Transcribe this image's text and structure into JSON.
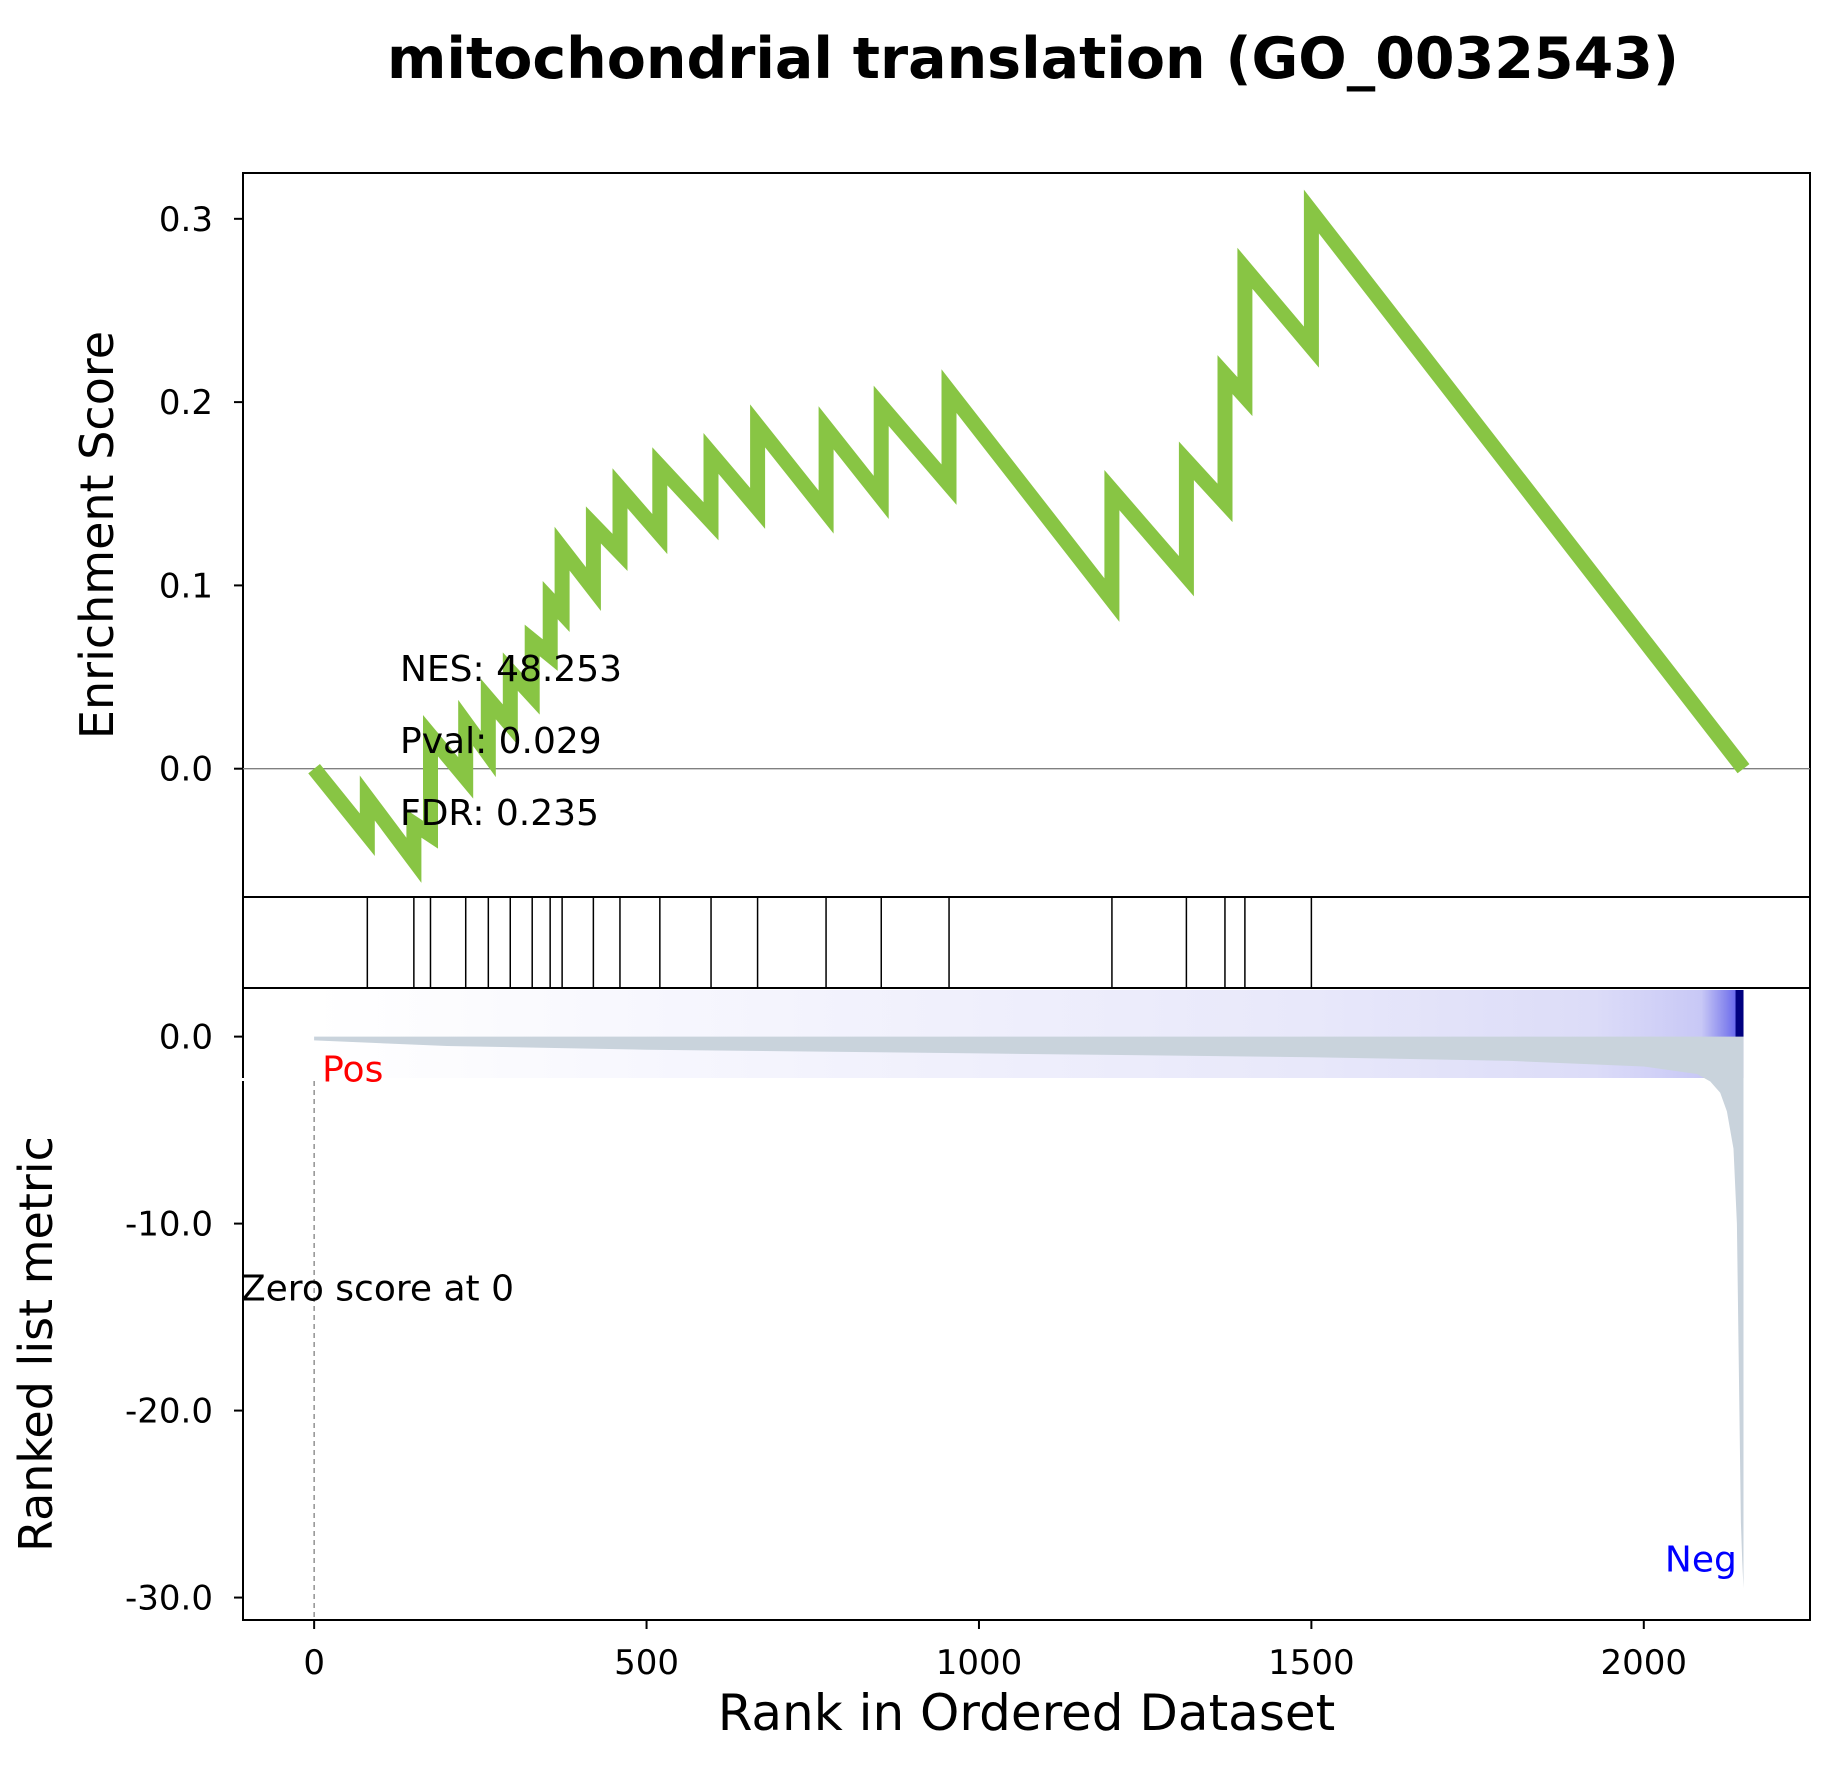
{
  "title": "mitochondrial translation (GO_0032543)",
  "colors": {
    "es_line": "#88c544",
    "metric_fill": "#c9d3dc",
    "pos_label": "#ff0000",
    "neg_label": "#0000ff",
    "heat_dark": "#000080",
    "zero_line": "#808080"
  },
  "chart_data": [
    {
      "type": "line",
      "panel": "enrichment-score",
      "ylabel": "Enrichment Score",
      "ylim": [
        -0.07,
        0.325
      ],
      "yticks": [
        0.0,
        0.1,
        0.2,
        0.3
      ],
      "ytick_labels": [
        "0.0",
        "0.1",
        "0.2",
        "0.3"
      ],
      "xlim": [
        -107,
        2250
      ],
      "stats": [
        "NES: 48.253",
        "Pval: 0.029",
        "FDR: 0.235"
      ],
      "series": [
        {
          "x": [
            0,
            80,
            80,
            150,
            150,
            175,
            175,
            228,
            228,
            262,
            262,
            295,
            295,
            328,
            328,
            355,
            355,
            373,
            373,
            420,
            420,
            460,
            460,
            520,
            520,
            597,
            597,
            667,
            667,
            770,
            770,
            853,
            853,
            955,
            955,
            1200,
            1200,
            1312,
            1312,
            1370,
            1370,
            1400,
            1400,
            1500,
            1500,
            2150
          ],
          "y": [
            0.0,
            -0.036,
            -0.016,
            -0.05,
            -0.03,
            -0.036,
            0.018,
            -0.005,
            0.025,
            0.008,
            0.038,
            0.024,
            0.053,
            0.04,
            0.07,
            0.062,
            0.092,
            0.085,
            0.12,
            0.098,
            0.133,
            0.118,
            0.153,
            0.128,
            0.165,
            0.135,
            0.172,
            0.142,
            0.187,
            0.14,
            0.186,
            0.148,
            0.198,
            0.155,
            0.206,
            0.092,
            0.152,
            0.105,
            0.168,
            0.145,
            0.215,
            0.203,
            0.273,
            0.23,
            0.304,
            0.0
          ]
        }
      ]
    },
    {
      "type": "scatter",
      "panel": "hit-positions",
      "hits": [
        80,
        150,
        175,
        228,
        262,
        295,
        328,
        355,
        373,
        420,
        460,
        520,
        597,
        667,
        770,
        853,
        955,
        1200,
        1312,
        1370,
        1400,
        1500
      ]
    },
    {
      "type": "area",
      "panel": "ranked-list-metric",
      "ylabel": "Ranked list metric",
      "xlabel": "Rank in Ordered Dataset",
      "ylim": [
        -31.2,
        2.6
      ],
      "yticks": [
        0.0,
        -10.0,
        -20.0,
        -30.0
      ],
      "ytick_labels": [
        "0.0",
        "-10.0",
        "-20.0",
        "-30.0"
      ],
      "xlim": [
        -107,
        2250
      ],
      "xticks": [
        0,
        500,
        1000,
        1500,
        2000
      ],
      "xtick_labels": [
        "0",
        "500",
        "1000",
        "1500",
        "2000"
      ],
      "series": [
        {
          "x": [
            0,
            200,
            500,
            1000,
            1500,
            1800,
            2000,
            2080,
            2100,
            2115,
            2125,
            2135,
            2140,
            2143,
            2146,
            2148,
            2150
          ],
          "y": [
            -0.2,
            -0.5,
            -0.7,
            -0.9,
            -1.1,
            -1.3,
            -1.6,
            -2.0,
            -2.4,
            -3.0,
            -4.0,
            -6.0,
            -10.0,
            -18.0,
            -26.0,
            -28.0,
            -29.5
          ]
        }
      ],
      "annotations": {
        "pos": "Pos",
        "neg": "Neg",
        "zero": "Zero score at 0"
      },
      "zero_cross_x": 0
    }
  ]
}
